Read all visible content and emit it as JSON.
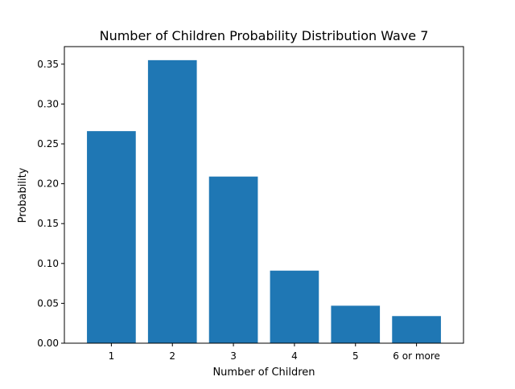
{
  "chart_data": {
    "type": "bar",
    "title": "Number of Children Probability Distribution Wave 7",
    "xlabel": "Number of Children",
    "ylabel": "Probability",
    "categories": [
      "1",
      "2",
      "3",
      "4",
      "5",
      "6 or more"
    ],
    "values": [
      0.266,
      0.355,
      0.209,
      0.091,
      0.047,
      0.034
    ],
    "ylim": [
      0,
      0.372
    ],
    "yticks": [
      0.0,
      0.05,
      0.1,
      0.15,
      0.2,
      0.25,
      0.3,
      0.35
    ],
    "ytick_labels": [
      "0.00",
      "0.05",
      "0.10",
      "0.15",
      "0.20",
      "0.25",
      "0.30",
      "0.35"
    ],
    "bar_color": "#1f77b4",
    "grid": false,
    "legend": "none"
  }
}
